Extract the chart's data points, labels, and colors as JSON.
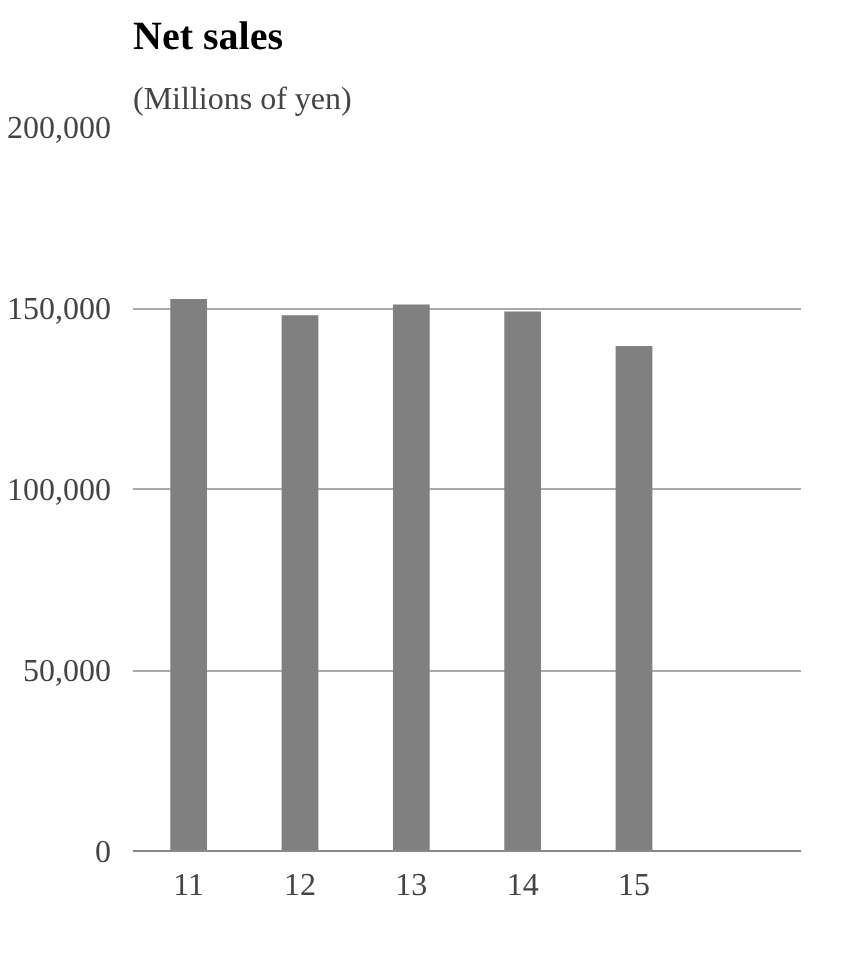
{
  "chart_data": {
    "type": "bar",
    "title": "Net sales",
    "ylabel": "(Millions of yen)",
    "categories": [
      "11",
      "12",
      "13",
      "14",
      "15",
      null
    ],
    "values": [
      152500,
      148000,
      151000,
      149000,
      139500,
      null
    ],
    "color": "#808080",
    "ylim": [
      0,
      200000
    ],
    "yticks": [
      {
        "value": 0,
        "label": "0"
      },
      {
        "value": 50000,
        "label": "50,000"
      },
      {
        "value": 100000,
        "label": "100,000"
      },
      {
        "value": 150000,
        "label": "150,000"
      },
      {
        "value": 200000,
        "label": "200,000"
      }
    ],
    "grid": "y"
  }
}
